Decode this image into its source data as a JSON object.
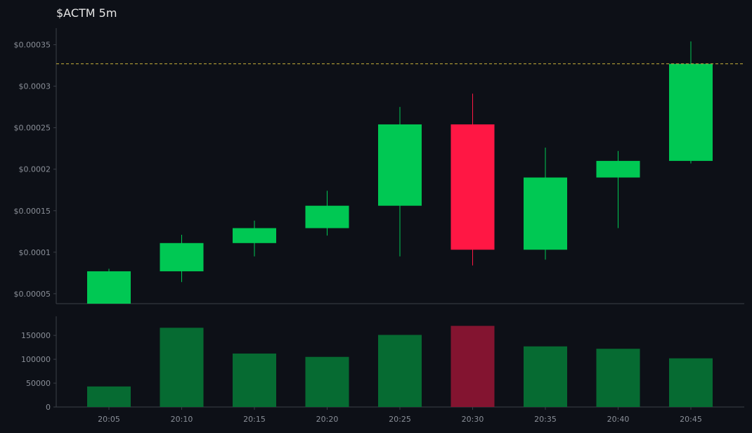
{
  "chart_data": {
    "type": "candlestick",
    "title": "$ACTM 5m",
    "categories": [
      "20:05",
      "20:10",
      "20:15",
      "20:20",
      "20:25",
      "20:30",
      "20:35",
      "20:40",
      "20:45"
    ],
    "candles": [
      {
        "open": 3.8e-05,
        "high": 8e-05,
        "low": 3.8e-05,
        "close": 7.7e-05
      },
      {
        "open": 7.7e-05,
        "high": 0.000121,
        "low": 6.4e-05,
        "close": 0.000111
      },
      {
        "open": 0.000111,
        "high": 0.000138,
        "low": 9.5e-05,
        "close": 0.000129
      },
      {
        "open": 0.000129,
        "high": 0.000174,
        "low": 0.00012,
        "close": 0.000156
      },
      {
        "open": 0.000156,
        "high": 0.000275,
        "low": 9.5e-05,
        "close": 0.000254
      },
      {
        "open": 0.000254,
        "high": 0.000291,
        "low": 8.4e-05,
        "close": 0.000103
      },
      {
        "open": 0.000103,
        "high": 0.000226,
        "low": 9.1e-05,
        "close": 0.00019
      },
      {
        "open": 0.00019,
        "high": 0.000222,
        "low": 0.000129,
        "close": 0.00021
      },
      {
        "open": 0.00021,
        "high": 0.000354,
        "low": 0.000207,
        "close": 0.000327
      }
    ],
    "volume": [
      43000,
      166000,
      112000,
      105000,
      151000,
      170000,
      127000,
      122000,
      102000
    ],
    "last_price": 0.000327,
    "price_ylim": [
      3.8e-05,
      0.00037
    ],
    "price_yticks": [
      5e-05,
      0.0001,
      0.00015,
      0.0002,
      0.00025,
      0.0003,
      0.00035
    ],
    "price_ytick_labels": [
      "$0.00005",
      "$0.0001",
      "$0.00015",
      "$0.0002",
      "$0.00025",
      "$0.0003",
      "$0.00035"
    ],
    "volume_ylim": [
      0,
      190000
    ],
    "volume_yticks": [
      0,
      50000,
      100000,
      150000
    ],
    "volume_ytick_labels": [
      "0",
      "50000",
      "100000",
      "150000"
    ],
    "colors": {
      "up": "#00c853",
      "down": "#ff1744",
      "up_volume": "#066b32",
      "down_volume": "#831430",
      "last_price_line": "#c9b23a",
      "axis": "#3a3f47",
      "tick_text": "#8a8f98",
      "background": "#0d1017"
    }
  }
}
